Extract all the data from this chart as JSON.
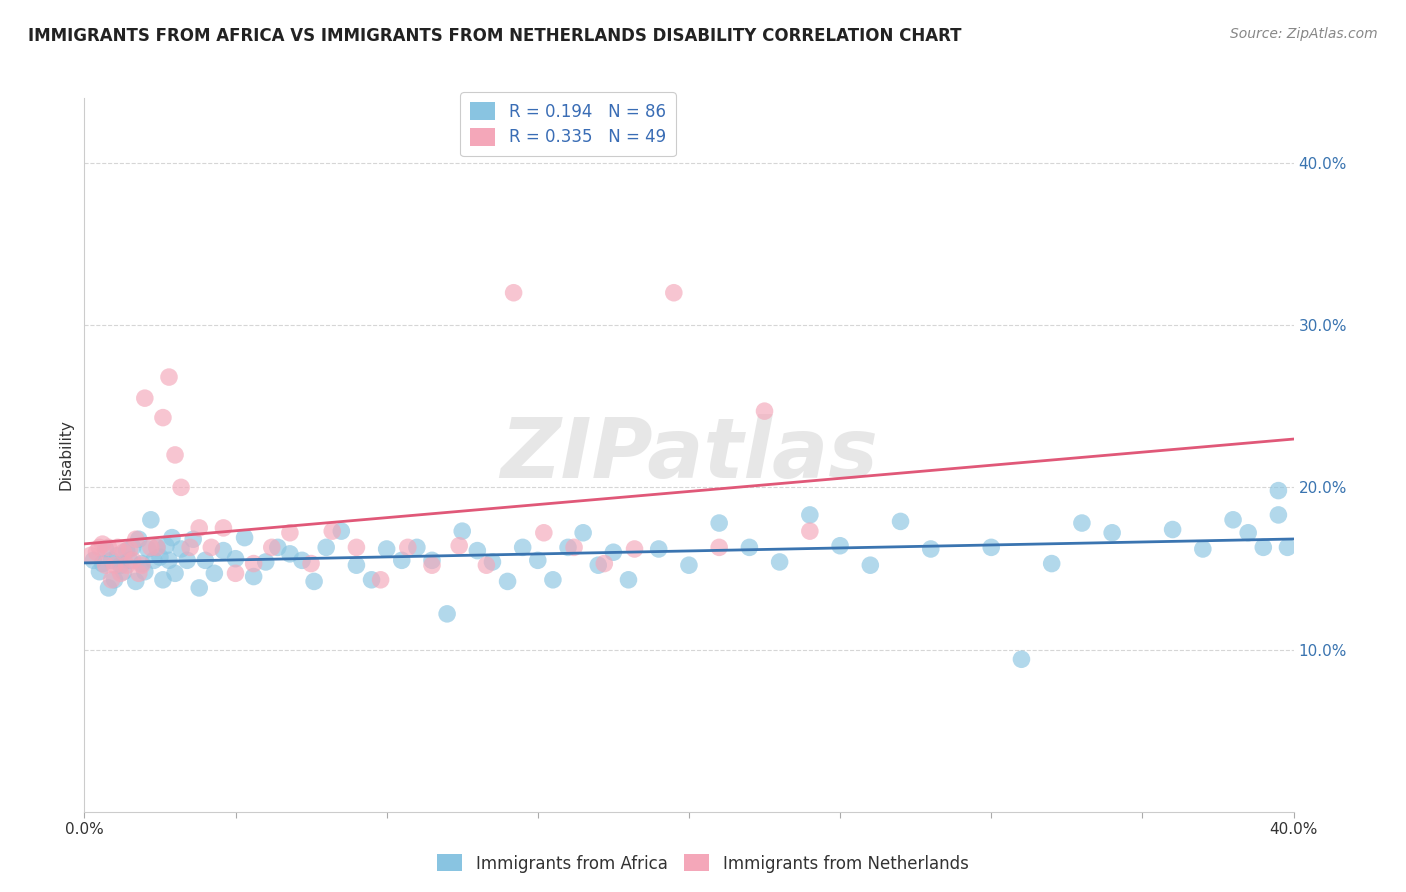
{
  "title": "IMMIGRANTS FROM AFRICA VS IMMIGRANTS FROM NETHERLANDS DISABILITY CORRELATION CHART",
  "source_text": "Source: ZipAtlas.com",
  "ylabel": "Disability",
  "xlim": [
    0.0,
    0.4
  ],
  "ylim": [
    0.0,
    0.44
  ],
  "yticks": [
    0.1,
    0.2,
    0.3,
    0.4
  ],
  "ytick_labels": [
    "10.0%",
    "20.0%",
    "30.0%",
    "40.0%"
  ],
  "xtick_positions": [
    0.0,
    0.4
  ],
  "xtick_labels": [
    "0.0%",
    "40.0%"
  ],
  "blue_R": 0.194,
  "blue_N": 86,
  "pink_R": 0.335,
  "pink_N": 49,
  "blue_color": "#89c4e1",
  "pink_color": "#f4a7b9",
  "blue_line_color": "#3a74b0",
  "pink_line_color": "#e05878",
  "legend_label_blue": "Immigrants from Africa",
  "legend_label_pink": "Immigrants from Netherlands",
  "background_color": "#ffffff",
  "watermark_text": "ZIPatlas",
  "watermark_color": "#d0d0d0",
  "blue_x": [
    0.003,
    0.005,
    0.006,
    0.007,
    0.008,
    0.009,
    0.01,
    0.011,
    0.012,
    0.013,
    0.014,
    0.015,
    0.016,
    0.017,
    0.018,
    0.019,
    0.02,
    0.021,
    0.022,
    0.023,
    0.024,
    0.025,
    0.026,
    0.027,
    0.028,
    0.029,
    0.03,
    0.032,
    0.034,
    0.036,
    0.038,
    0.04,
    0.043,
    0.046,
    0.05,
    0.053,
    0.056,
    0.06,
    0.064,
    0.068,
    0.072,
    0.076,
    0.08,
    0.085,
    0.09,
    0.095,
    0.1,
    0.105,
    0.11,
    0.115,
    0.12,
    0.125,
    0.13,
    0.135,
    0.14,
    0.145,
    0.15,
    0.155,
    0.16,
    0.165,
    0.17,
    0.175,
    0.18,
    0.19,
    0.2,
    0.21,
    0.22,
    0.23,
    0.24,
    0.25,
    0.26,
    0.27,
    0.28,
    0.3,
    0.31,
    0.32,
    0.33,
    0.34,
    0.36,
    0.37,
    0.38,
    0.385,
    0.39,
    0.395,
    0.395,
    0.398
  ],
  "blue_y": [
    0.155,
    0.148,
    0.153,
    0.162,
    0.138,
    0.155,
    0.143,
    0.158,
    0.152,
    0.148,
    0.161,
    0.155,
    0.163,
    0.142,
    0.168,
    0.153,
    0.148,
    0.162,
    0.18,
    0.155,
    0.163,
    0.157,
    0.143,
    0.164,
    0.155,
    0.169,
    0.147,
    0.162,
    0.155,
    0.168,
    0.138,
    0.155,
    0.147,
    0.161,
    0.156,
    0.169,
    0.145,
    0.154,
    0.163,
    0.159,
    0.155,
    0.142,
    0.163,
    0.173,
    0.152,
    0.143,
    0.162,
    0.155,
    0.163,
    0.155,
    0.122,
    0.173,
    0.161,
    0.154,
    0.142,
    0.163,
    0.155,
    0.143,
    0.163,
    0.172,
    0.152,
    0.16,
    0.143,
    0.162,
    0.152,
    0.178,
    0.163,
    0.154,
    0.183,
    0.164,
    0.152,
    0.179,
    0.162,
    0.163,
    0.094,
    0.153,
    0.178,
    0.172,
    0.174,
    0.162,
    0.18,
    0.172,
    0.163,
    0.183,
    0.198,
    0.163
  ],
  "pink_x": [
    0.002,
    0.004,
    0.005,
    0.006,
    0.007,
    0.008,
    0.009,
    0.01,
    0.011,
    0.012,
    0.013,
    0.014,
    0.015,
    0.016,
    0.017,
    0.018,
    0.019,
    0.02,
    0.022,
    0.024,
    0.026,
    0.028,
    0.03,
    0.032,
    0.035,
    0.038,
    0.042,
    0.046,
    0.05,
    0.056,
    0.062,
    0.068,
    0.075,
    0.082,
    0.09,
    0.098,
    0.107,
    0.115,
    0.124,
    0.133,
    0.142,
    0.152,
    0.162,
    0.172,
    0.182,
    0.195,
    0.21,
    0.225,
    0.24
  ],
  "pink_y": [
    0.158,
    0.16,
    0.163,
    0.165,
    0.152,
    0.163,
    0.143,
    0.152,
    0.163,
    0.147,
    0.16,
    0.152,
    0.162,
    0.155,
    0.168,
    0.147,
    0.152,
    0.255,
    0.163,
    0.163,
    0.243,
    0.268,
    0.22,
    0.2,
    0.163,
    0.175,
    0.163,
    0.175,
    0.147,
    0.153,
    0.163,
    0.172,
    0.153,
    0.173,
    0.163,
    0.143,
    0.163,
    0.152,
    0.164,
    0.152,
    0.32,
    0.172,
    0.163,
    0.153,
    0.162,
    0.32,
    0.163,
    0.247,
    0.173
  ]
}
